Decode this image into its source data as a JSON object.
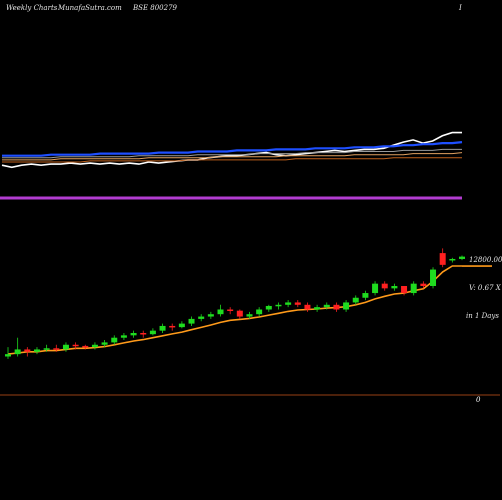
{
  "header": {
    "left": "Weekly Charts",
    "middle": "MunafaSutra.com",
    "right": "BSE 800279",
    "far_right": "I"
  },
  "side_labels": {
    "price": "12800.00",
    "volume_ratio": "V: 0.67 X",
    "period": "in 1 Days"
  },
  "colors": {
    "background": "#000000",
    "up_candle": "#1fdc1f",
    "down_candle": "#ff2020",
    "ema": "#ff9a1a",
    "indicator_line": "#ffffff",
    "indicator_blue": "#1e4fff",
    "band_purple": "#b23cd0",
    "zero_line": "#7a3410"
  },
  "chart_data": [
    {
      "type": "line",
      "panel": "indicator",
      "x": [
        1,
        2,
        3,
        4,
        5,
        6,
        7,
        8,
        9,
        10,
        11,
        12,
        13,
        14,
        15,
        16,
        17,
        18,
        19,
        20,
        21,
        22,
        23,
        24,
        25,
        26,
        27,
        28,
        29,
        30,
        31,
        32,
        33,
        34,
        35,
        36,
        37,
        38,
        39,
        40,
        41,
        42,
        43,
        44,
        45,
        46,
        47,
        48
      ],
      "series": [
        {
          "values": [
            43,
            45,
            43,
            42,
            43,
            42,
            42,
            41,
            42,
            41,
            42,
            41,
            42,
            41,
            42,
            40,
            41,
            40,
            39,
            38,
            38,
            36,
            35,
            34,
            34,
            33,
            32,
            31,
            33,
            34,
            33,
            32,
            31,
            30,
            29,
            30,
            29,
            28,
            28,
            27,
            24,
            21,
            19,
            22,
            20,
            15,
            12,
            12
          ],
          "color": "#ffffff"
        },
        {
          "values": [
            34,
            34,
            34,
            34,
            34,
            33,
            33,
            33,
            33,
            33,
            32,
            32,
            32,
            32,
            32,
            32,
            31,
            31,
            31,
            31,
            30,
            30,
            30,
            30,
            29,
            29,
            29,
            29,
            28,
            28,
            28,
            28,
            27,
            27,
            27,
            27,
            26,
            26,
            26,
            25,
            25,
            24,
            24,
            23,
            23,
            22,
            22,
            21
          ],
          "color": "#1e4fff"
        },
        {
          "values": [
            36,
            36,
            36,
            36,
            36,
            36,
            35,
            35,
            35,
            35,
            35,
            35,
            35,
            35,
            34,
            34,
            34,
            34,
            34,
            34,
            33,
            33,
            33,
            33,
            33,
            33,
            32,
            32,
            32,
            32,
            32,
            31,
            31,
            31,
            31,
            31,
            30,
            30,
            30,
            30,
            30,
            29,
            29,
            29,
            29,
            28,
            28,
            28
          ],
          "color": "#9a9a9a"
        },
        {
          "values": [
            38,
            38,
            38,
            38,
            38,
            38,
            37,
            37,
            37,
            37,
            37,
            37,
            37,
            37,
            37,
            36,
            36,
            36,
            36,
            36,
            36,
            36,
            35,
            35,
            35,
            35,
            35,
            35,
            35,
            34,
            34,
            34,
            34,
            34,
            34,
            34,
            33,
            33,
            33,
            33,
            33,
            33,
            32,
            32,
            32,
            32,
            32,
            31
          ],
          "color": "#e0a060"
        },
        {
          "values": [
            40,
            40,
            40,
            40,
            40,
            40,
            40,
            40,
            40,
            39,
            39,
            39,
            39,
            39,
            39,
            39,
            39,
            39,
            39,
            38,
            38,
            38,
            38,
            38,
            38,
            38,
            38,
            38,
            38,
            38,
            37,
            37,
            37,
            37,
            37,
            37,
            37,
            37,
            37,
            37,
            36,
            36,
            36,
            36,
            36,
            36,
            36,
            36
          ],
          "color": "#c0601a"
        }
      ]
    },
    {
      "type": "candlestick",
      "panel": "price",
      "x": [
        1,
        2,
        3,
        4,
        5,
        6,
        7,
        8,
        9,
        10,
        11,
        12,
        13,
        14,
        15,
        16,
        17,
        18,
        19,
        20,
        21,
        22,
        23,
        24,
        25,
        26,
        27,
        28,
        29,
        30,
        31,
        32,
        33,
        34,
        35,
        36,
        37,
        38,
        39,
        40,
        41,
        42,
        43,
        44,
        45,
        46,
        47,
        48
      ],
      "candles": [
        {
          "o": 30,
          "c": 31,
          "h": 34,
          "l": 29
        },
        {
          "o": 31,
          "c": 33,
          "h": 38,
          "l": 30
        },
        {
          "o": 33,
          "c": 32,
          "h": 34,
          "l": 30
        },
        {
          "o": 32,
          "c": 33,
          "h": 34,
          "l": 31
        },
        {
          "o": 33,
          "c": 33.5,
          "h": 35,
          "l": 32
        },
        {
          "o": 33.5,
          "c": 33,
          "h": 35,
          "l": 32
        },
        {
          "o": 33,
          "c": 35,
          "h": 36,
          "l": 32
        },
        {
          "o": 35,
          "c": 34.5,
          "h": 36,
          "l": 33
        },
        {
          "o": 34.5,
          "c": 34,
          "h": 35,
          "l": 33
        },
        {
          "o": 34,
          "c": 35,
          "h": 36,
          "l": 33
        },
        {
          "o": 35,
          "c": 36,
          "h": 37,
          "l": 34
        },
        {
          "o": 36,
          "c": 38,
          "h": 39,
          "l": 35
        },
        {
          "o": 38,
          "c": 39,
          "h": 40,
          "l": 37
        },
        {
          "o": 39,
          "c": 40,
          "h": 41,
          "l": 38
        },
        {
          "o": 40,
          "c": 39.5,
          "h": 41,
          "l": 38
        },
        {
          "o": 39.5,
          "c": 41,
          "h": 42,
          "l": 39
        },
        {
          "o": 41,
          "c": 43,
          "h": 44,
          "l": 40
        },
        {
          "o": 43,
          "c": 42.5,
          "h": 44,
          "l": 41
        },
        {
          "o": 42.5,
          "c": 44,
          "h": 45,
          "l": 42
        },
        {
          "o": 44,
          "c": 46,
          "h": 47,
          "l": 43
        },
        {
          "o": 46,
          "c": 47,
          "h": 48,
          "l": 45
        },
        {
          "o": 47,
          "c": 48,
          "h": 49,
          "l": 46
        },
        {
          "o": 48,
          "c": 50,
          "h": 52,
          "l": 47
        },
        {
          "o": 50,
          "c": 49.5,
          "h": 51,
          "l": 48
        },
        {
          "o": 49.5,
          "c": 47,
          "h": 50,
          "l": 46
        },
        {
          "o": 47,
          "c": 48,
          "h": 49,
          "l": 46
        },
        {
          "o": 48,
          "c": 50,
          "h": 51,
          "l": 47
        },
        {
          "o": 50,
          "c": 51.5,
          "h": 52,
          "l": 49
        },
        {
          "o": 51.5,
          "c": 52,
          "h": 53,
          "l": 50
        },
        {
          "o": 52,
          "c": 53,
          "h": 54,
          "l": 51
        },
        {
          "o": 53,
          "c": 52,
          "h": 54,
          "l": 51
        },
        {
          "o": 52,
          "c": 50,
          "h": 53,
          "l": 49
        },
        {
          "o": 50,
          "c": 51,
          "h": 52,
          "l": 49
        },
        {
          "o": 51,
          "c": 52,
          "h": 53,
          "l": 50
        },
        {
          "o": 52,
          "c": 50,
          "h": 53,
          "l": 49
        },
        {
          "o": 50,
          "c": 53,
          "h": 54,
          "l": 49
        },
        {
          "o": 53,
          "c": 55,
          "h": 56,
          "l": 52
        },
        {
          "o": 55,
          "c": 57,
          "h": 58,
          "l": 54
        },
        {
          "o": 57,
          "c": 61,
          "h": 62,
          "l": 56
        },
        {
          "o": 61,
          "c": 59,
          "h": 62,
          "l": 58
        },
        {
          "o": 59,
          "c": 60,
          "h": 61,
          "l": 58
        },
        {
          "o": 60,
          "c": 57,
          "h": 60,
          "l": 56
        },
        {
          "o": 57,
          "c": 61,
          "h": 62,
          "l": 56
        },
        {
          "o": 61,
          "c": 60,
          "h": 62,
          "l": 59
        },
        {
          "o": 60,
          "c": 67,
          "h": 68,
          "l": 59
        },
        {
          "o": 74,
          "c": 69,
          "h": 76,
          "l": 68
        },
        {
          "o": 71,
          "c": 71.5,
          "h": 72,
          "l": 70
        },
        {
          "o": 71.5,
          "c": 72.5,
          "h": 73,
          "l": 71
        }
      ],
      "ema": [
        31,
        31.5,
        32,
        32,
        32.5,
        32.5,
        33,
        33.5,
        33.5,
        33.8,
        34.2,
        35,
        35.8,
        36.6,
        37.2,
        38,
        38.8,
        39.6,
        40.4,
        41.4,
        42.4,
        43.4,
        44.5,
        45.4,
        45.8,
        46.2,
        46.8,
        47.6,
        48.4,
        49.2,
        49.8,
        50,
        50.2,
        50.6,
        50.8,
        51.2,
        52,
        53,
        54.5,
        55.6,
        56.6,
        57,
        58,
        58.8,
        62,
        66,
        68.5,
        68.5
      ]
    },
    {
      "type": "hline",
      "panel": "zero",
      "label": "0"
    }
  ]
}
